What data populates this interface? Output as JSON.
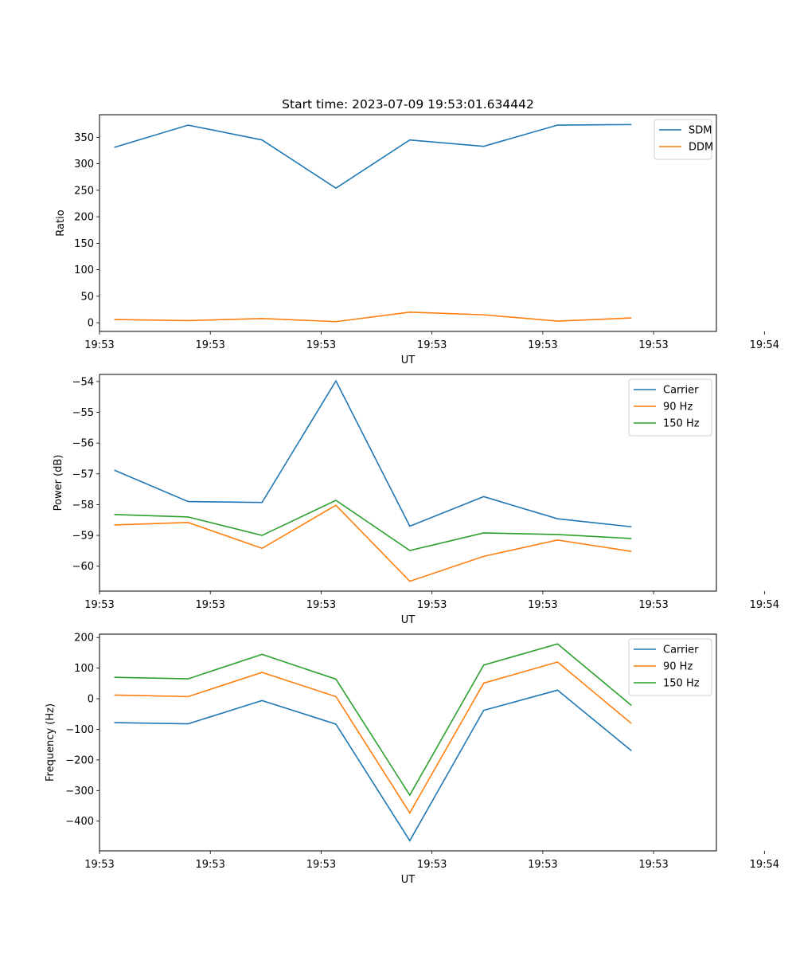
{
  "chart_data": [
    {
      "type": "line",
      "title": "Start time: 2023-07-09 19:53:01.634442",
      "xlabel": "UT",
      "ylabel": "Ratio",
      "x": [
        1,
        2,
        3,
        4,
        5,
        6,
        7,
        8
      ],
      "xlim": [
        0.8,
        9.15
      ],
      "ylim": [
        -16.4,
        392.6
      ],
      "yticks": [
        0,
        50,
        100,
        150,
        200,
        250,
        300,
        350
      ],
      "xtick_positions": [
        0.8,
        2.3,
        3.8,
        5.3,
        6.8,
        8.3,
        9.8
      ],
      "xtick_labels": [
        "19:53",
        "19:53",
        "19:53",
        "19:53",
        "19:53",
        "19:53",
        "19:54"
      ],
      "legend_loc": "upper-right",
      "series": [
        {
          "name": "SDM",
          "color": "#1f77b4",
          "values": [
            331,
            373,
            345,
            254,
            345,
            333,
            373,
            374
          ]
        },
        {
          "name": "DDM",
          "color": "#ff7f0e",
          "values": [
            6,
            4,
            8,
            2,
            20,
            15,
            3,
            9
          ]
        }
      ]
    },
    {
      "type": "line",
      "title": "",
      "xlabel": "UT",
      "ylabel": "Power (dB)",
      "x": [
        1,
        2,
        3,
        4,
        5,
        6,
        7,
        8
      ],
      "xlim": [
        0.8,
        9.15
      ],
      "ylim": [
        -60.81,
        -53.77
      ],
      "yticks": [
        -60,
        -59,
        -58,
        -57,
        -56,
        -55,
        -54
      ],
      "xtick_positions": [
        0.8,
        2.3,
        3.8,
        5.3,
        6.8,
        8.3,
        9.8
      ],
      "xtick_labels": [
        "19:53",
        "19:53",
        "19:53",
        "19:53",
        "19:53",
        "19:53",
        "19:54"
      ],
      "legend_loc": "upper-right",
      "series": [
        {
          "name": "Carrier",
          "color": "#1f77b4",
          "values": [
            -56.88,
            -57.9,
            -57.93,
            -53.98,
            -58.7,
            -57.74,
            -58.46,
            -58.72
          ]
        },
        {
          "name": "90 Hz",
          "color": "#ff7f0e",
          "values": [
            -58.66,
            -58.58,
            -59.42,
            -58.02,
            -60.49,
            -59.68,
            -59.15,
            -59.52
          ]
        },
        {
          "name": "150 Hz",
          "color": "#2ca02c",
          "values": [
            -58.32,
            -58.4,
            -59.0,
            -57.86,
            -59.49,
            -58.92,
            -58.97,
            -59.1
          ]
        }
      ]
    },
    {
      "type": "line",
      "title": "",
      "xlabel": "UT",
      "ylabel": "Frequency (Hz)",
      "x": [
        1,
        2,
        3,
        4,
        5,
        6,
        7,
        8
      ],
      "xlim": [
        0.8,
        9.15
      ],
      "ylim": [
        -497,
        211
      ],
      "yticks": [
        -400,
        -300,
        -200,
        -100,
        0,
        100,
        200
      ],
      "xtick_positions": [
        0.8,
        2.3,
        3.8,
        5.3,
        6.8,
        8.3,
        9.8
      ],
      "xtick_labels": [
        "19:53",
        "19:53",
        "19:53",
        "19:53",
        "19:53",
        "19:53",
        "19:54"
      ],
      "legend_loc": "upper-right",
      "series": [
        {
          "name": "Carrier",
          "color": "#1f77b4",
          "values": [
            -78,
            -82,
            -6,
            -83,
            -464,
            -38,
            28,
            -170
          ]
        },
        {
          "name": "90 Hz",
          "color": "#ff7f0e",
          "values": [
            12,
            7,
            86,
            7,
            -373,
            51,
            120,
            -81
          ]
        },
        {
          "name": "150 Hz",
          "color": "#2ca02c",
          "values": [
            70,
            65,
            145,
            64,
            -315,
            110,
            179,
            -22
          ]
        }
      ]
    }
  ]
}
